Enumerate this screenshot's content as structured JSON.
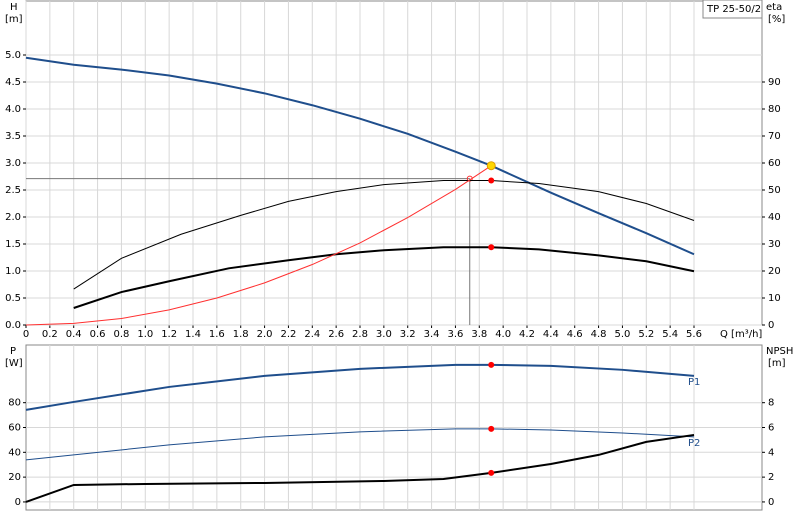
{
  "chart_data": [
    {
      "type": "line",
      "legend_label": "TP 25-50/2",
      "y_label": "H",
      "y_unit": "[m]",
      "y2_label": "eta",
      "y2_unit": "[%]",
      "x_label": "Q [m³/h]",
      "xlim": [
        0,
        6.17
      ],
      "ylim": [
        0,
        6
      ],
      "y2lim": [
        0,
        120
      ],
      "xticks": [
        {
          "value": 0,
          "label": "0"
        },
        0.2,
        0.4,
        0.6,
        0.8,
        {
          "value": 1,
          "label": "1.0"
        },
        1.2,
        1.4,
        1.6,
        1.8,
        {
          "value": 2,
          "label": "2.0"
        },
        2.2,
        2.4,
        2.6,
        2.8,
        {
          "value": 3,
          "label": "3.0"
        },
        3.2,
        3.4,
        3.6,
        3.8,
        {
          "value": 4,
          "label": "4.0"
        },
        4.2,
        4.4,
        4.6,
        4.8,
        {
          "value": 5,
          "label": "5.0"
        },
        5.2,
        5.4,
        5.6
      ],
      "yticks": [
        {
          "value": 0,
          "label": "0.0"
        },
        0.5,
        {
          "value": 1,
          "label": "1.0"
        },
        1.5,
        {
          "value": 2,
          "label": "2.0"
        },
        2.5,
        {
          "value": 3,
          "label": "3.0"
        },
        3.5,
        {
          "value": 4,
          "label": "4.0"
        },
        4.5,
        {
          "value": 5,
          "label": "5.0"
        }
      ],
      "y2ticks": [
        0,
        10,
        20,
        30,
        40,
        50,
        60,
        70,
        80,
        90
      ],
      "grid": true,
      "series": [
        {
          "color": "#1f4e8c",
          "width": 2,
          "axis": "y",
          "x": [
            0,
            0.4,
            0.8,
            1.2,
            1.6,
            2.0,
            2.4,
            2.8,
            3.2,
            3.6,
            3.9,
            4.4,
            4.8,
            5.2,
            5.6
          ],
          "values": [
            4.95,
            4.82,
            4.73,
            4.62,
            4.47,
            4.29,
            4.07,
            3.82,
            3.54,
            3.21,
            2.95,
            2.45,
            2.07,
            1.7,
            1.31
          ]
        },
        {
          "color": "#000000",
          "width": 1,
          "axis": "y2",
          "x": [
            0.4,
            0.8,
            1.3,
            1.8,
            2.2,
            2.6,
            3.0,
            3.5,
            3.9,
            4.3,
            4.8,
            5.2,
            5.6
          ],
          "values": [
            13.3,
            24.7,
            33.6,
            40.6,
            45.8,
            49.4,
            52,
            53.5,
            53.5,
            52.4,
            49.4,
            45,
            38.7
          ]
        },
        {
          "color": "#000000",
          "width": 2,
          "axis": "y2",
          "x": [
            0.4,
            0.8,
            1.2,
            1.7,
            2.2,
            2.6,
            3.0,
            3.5,
            3.9,
            4.3,
            4.8,
            5.2,
            5.6
          ],
          "values": [
            6.3,
            12.2,
            16.2,
            21,
            24,
            26.2,
            27.7,
            28.8,
            28.8,
            28,
            25.8,
            23.6,
            19.9
          ]
        },
        {
          "color": "#ff3030",
          "width": 1,
          "axis": "y",
          "x": [
            0,
            0.4,
            0.8,
            1.2,
            1.6,
            2.0,
            2.4,
            2.8,
            3.2,
            3.6,
            3.9
          ],
          "values": [
            0,
            0.03,
            0.12,
            0.28,
            0.5,
            0.78,
            1.12,
            1.52,
            1.99,
            2.51,
            2.95
          ]
        }
      ],
      "reference": {
        "x": 3.72,
        "y": 2.71
      },
      "points": [
        {
          "x": 3.9,
          "y": 2.95,
          "axis": "y",
          "color": "#ffd700"
        },
        {
          "x": 3.9,
          "y": 53.5,
          "axis": "y2",
          "color": "#ff0000"
        },
        {
          "x": 3.9,
          "y": 28.8,
          "axis": "y2",
          "color": "#ff0000"
        }
      ]
    },
    {
      "type": "line",
      "y_label": "P",
      "y_unit": "[W]",
      "y2_label": "NPSH",
      "y2_unit": "[m]",
      "xlim": [
        0,
        6.17
      ],
      "ylim": [
        -6.5,
        126.5
      ],
      "y2lim": [
        -0.65,
        12.65
      ],
      "xgrid": [
        0.2,
        0.4,
        0.6,
        0.8,
        1.0,
        1.2,
        1.4,
        1.6,
        1.8,
        2.0,
        2.2,
        2.4,
        2.6,
        2.8,
        3.0,
        3.2,
        3.4,
        3.6,
        3.8,
        4.0,
        4.2,
        4.4,
        4.6,
        4.8,
        5.0,
        5.2,
        5.4,
        5.6
      ],
      "yticks": [
        0,
        20,
        40,
        60,
        80
      ],
      "y2ticks": [
        0,
        2,
        4,
        6,
        8
      ],
      "grid": true,
      "series": [
        {
          "name": "P1",
          "color": "#1f4e8c",
          "width": 2,
          "axis": "y",
          "x": [
            0,
            0.4,
            1.2,
            2.0,
            2.8,
            3.6,
            3.9,
            4.4,
            5.0,
            5.6
          ],
          "values": [
            74.2,
            80.6,
            92.7,
            101.6,
            107.3,
            110.5,
            110.5,
            109.7,
            106.5,
            101.6
          ]
        },
        {
          "name": "P2",
          "color": "#1f4e8c",
          "width": 1,
          "axis": "y",
          "x": [
            0,
            0.4,
            1.2,
            2.0,
            2.8,
            3.6,
            3.9,
            4.4,
            5.0,
            5.6
          ],
          "values": [
            33.9,
            37.9,
            46,
            52.4,
            56.5,
            58.9,
            58.9,
            58,
            55.6,
            52.4
          ]
        },
        {
          "color": "#000000",
          "width": 2,
          "axis": "y2",
          "x": [
            0,
            0.4,
            1.0,
            2.0,
            3.0,
            3.5,
            3.9,
            4.4,
            4.8,
            5.2,
            5.6
          ],
          "values": [
            0,
            1.37,
            1.45,
            1.53,
            1.69,
            1.85,
            2.34,
            3.06,
            3.79,
            4.84,
            5.4
          ]
        }
      ],
      "points": [
        {
          "x": 3.9,
          "y": 110.5,
          "axis": "y",
          "color": "#ff0000"
        },
        {
          "x": 3.9,
          "y": 58.9,
          "axis": "y",
          "color": "#ff0000"
        },
        {
          "x": 3.9,
          "y": 2.34,
          "axis": "y2",
          "color": "#ff0000"
        }
      ]
    }
  ]
}
